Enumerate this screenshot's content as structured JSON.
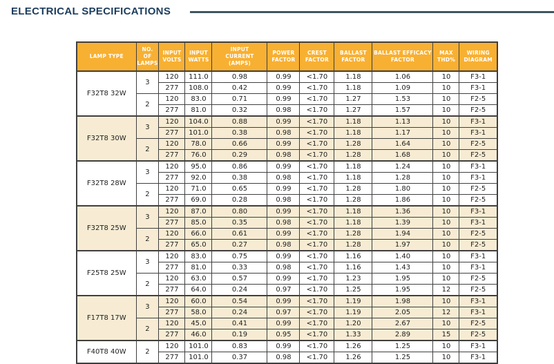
{
  "title": "ELECTRICAL SPECIFICATIONS",
  "colors": {
    "title": "#1C3C5E",
    "rule": "#40565F",
    "header_bg": "#F8B032",
    "header_text": "#FFFFFF",
    "row_shaded": "#F7ECD3",
    "row_plain": "#FFFFFF",
    "border": "#3F3F3F",
    "cell_text": "#1E1E1E"
  },
  "table": {
    "columns": [
      "LAMP TYPE",
      "NO. OF\nLAMPS",
      "INPUT\nVOLTS",
      "INPUT\nWATTS",
      "INPUT\nCURRENT\n(AMPS)",
      "POWER\nFACTOR",
      "CREST\nFACTOR",
      "BALLAST\nFACTOR",
      "BALLAST EFFICACY\nFACTOR",
      "MAX\nTHD%",
      "WIRING\nDIAGRAM"
    ],
    "groups": [
      {
        "lamp_type": "F32T8 32W",
        "shaded": false,
        "subgroups": [
          {
            "no_of_lamps": "3",
            "rows": [
              [
                "120",
                "111.0",
                "0.98",
                "0.99",
                "<1.70",
                "1.18",
                "1.06",
                "10",
                "F3-1"
              ],
              [
                "277",
                "108.0",
                "0.42",
                "0.99",
                "<1.70",
                "1.18",
                "1.09",
                "10",
                "F3-1"
              ]
            ]
          },
          {
            "no_of_lamps": "2",
            "rows": [
              [
                "120",
                "83.0",
                "0.71",
                "0.99",
                "<1.70",
                "1.27",
                "1.53",
                "10",
                "F2-5"
              ],
              [
                "277",
                "81.0",
                "0.32",
                "0.98",
                "<1.70",
                "1.27",
                "1.57",
                "10",
                "F2-5"
              ]
            ]
          }
        ]
      },
      {
        "lamp_type": "F32T8 30W",
        "shaded": true,
        "subgroups": [
          {
            "no_of_lamps": "3",
            "rows": [
              [
                "120",
                "104.0",
                "0.88",
                "0.99",
                "<1.70",
                "1.18",
                "1.13",
                "10",
                "F3-1"
              ],
              [
                "277",
                "101.0",
                "0.38",
                "0.98",
                "<1.70",
                "1.18",
                "1.17",
                "10",
                "F3-1"
              ]
            ]
          },
          {
            "no_of_lamps": "2",
            "rows": [
              [
                "120",
                "78.0",
                "0.66",
                "0.99",
                "<1.70",
                "1.28",
                "1.64",
                "10",
                "F2-5"
              ],
              [
                "277",
                "76.0",
                "0.29",
                "0.98",
                "<1.70",
                "1.28",
                "1.68",
                "10",
                "F2-5"
              ]
            ]
          }
        ]
      },
      {
        "lamp_type": "F32T8 28W",
        "shaded": false,
        "subgroups": [
          {
            "no_of_lamps": "3",
            "rows": [
              [
                "120",
                "95.0",
                "0.86",
                "0.99",
                "<1.70",
                "1.18",
                "1.24",
                "10",
                "F3-1"
              ],
              [
                "277",
                "92.0",
                "0.38",
                "0.98",
                "<1.70",
                "1.18",
                "1.28",
                "10",
                "F3-1"
              ]
            ]
          },
          {
            "no_of_lamps": "2",
            "rows": [
              [
                "120",
                "71.0",
                "0.65",
                "0.99",
                "<1.70",
                "1.28",
                "1.80",
                "10",
                "F2-5"
              ],
              [
                "277",
                "69.0",
                "0.28",
                "0.98",
                "<1.70",
                "1.28",
                "1.86",
                "10",
                "F2-5"
              ]
            ]
          }
        ]
      },
      {
        "lamp_type": "F32T8 25W",
        "shaded": true,
        "subgroups": [
          {
            "no_of_lamps": "3",
            "rows": [
              [
                "120",
                "87.0",
                "0.80",
                "0.99",
                "<1.70",
                "1.18",
                "1.36",
                "10",
                "F3-1"
              ],
              [
                "277",
                "85.0",
                "0.35",
                "0.98",
                "<1.70",
                "1.18",
                "1.39",
                "10",
                "F3-1"
              ]
            ]
          },
          {
            "no_of_lamps": "2",
            "rows": [
              [
                "120",
                "66.0",
                "0.61",
                "0.99",
                "<1.70",
                "1.28",
                "1.94",
                "10",
                "F2-5"
              ],
              [
                "277",
                "65.0",
                "0.27",
                "0.98",
                "<1.70",
                "1.28",
                "1.97",
                "10",
                "F2-5"
              ]
            ]
          }
        ]
      },
      {
        "lamp_type": "F25T8 25W",
        "shaded": false,
        "subgroups": [
          {
            "no_of_lamps": "3",
            "rows": [
              [
                "120",
                "83.0",
                "0.75",
                "0.99",
                "<1.70",
                "1.16",
                "1.40",
                "10",
                "F3-1"
              ],
              [
                "277",
                "81.0",
                "0.33",
                "0.98",
                "<1.70",
                "1.16",
                "1.43",
                "10",
                "F3-1"
              ]
            ]
          },
          {
            "no_of_lamps": "2",
            "rows": [
              [
                "120",
                "63.0",
                "0.57",
                "0.99",
                "<1.70",
                "1.23",
                "1.95",
                "10",
                "F2-5"
              ],
              [
                "277",
                "64.0",
                "0.24",
                "0.97",
                "<1.70",
                "1.25",
                "1.95",
                "12",
                "F2-5"
              ]
            ]
          }
        ]
      },
      {
        "lamp_type": "F17T8 17W",
        "shaded": true,
        "subgroups": [
          {
            "no_of_lamps": "3",
            "rows": [
              [
                "120",
                "60.0",
                "0.54",
                "0.99",
                "<1.70",
                "1.19",
                "1.98",
                "10",
                "F3-1"
              ],
              [
                "277",
                "58.0",
                "0.24",
                "0.97",
                "<1.70",
                "1.19",
                "2.05",
                "12",
                "F3-1"
              ]
            ]
          },
          {
            "no_of_lamps": "2",
            "rows": [
              [
                "120",
                "45.0",
                "0.41",
                "0.99",
                "<1.70",
                "1.20",
                "2.67",
                "10",
                "F2-5"
              ],
              [
                "277",
                "46.0",
                "0.19",
                "0.95",
                "<1.70",
                "1.33",
                "2.89",
                "15",
                "F2-5"
              ]
            ]
          }
        ]
      },
      {
        "lamp_type": "F40T8  40W",
        "shaded": false,
        "subgroups": [
          {
            "no_of_lamps": "2",
            "rows": [
              [
                "120",
                "101.0",
                "0.83",
                "0.99",
                "<1.70",
                "1.26",
                "1.25",
                "10",
                "F3-1"
              ],
              [
                "277",
                "101.0",
                "0.37",
                "0.98",
                "<1.70",
                "1.26",
                "1.25",
                "10",
                "F3-1"
              ]
            ]
          }
        ]
      }
    ]
  }
}
